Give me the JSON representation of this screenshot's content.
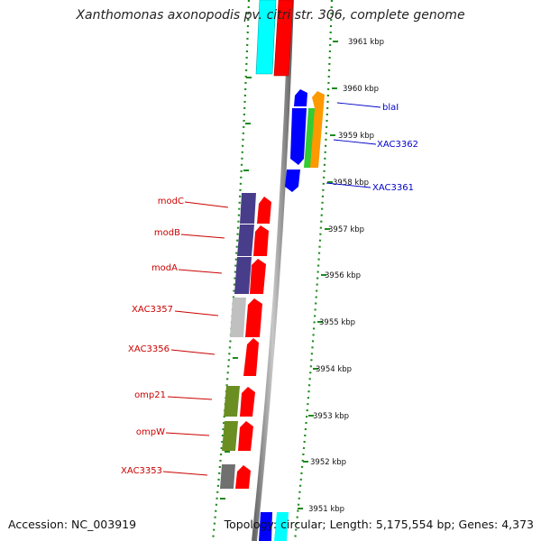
{
  "title": "Xanthomonas axonopodis pv. citri str. 306, complete genome",
  "footer": {
    "accession": "Accession: NC_003919",
    "summary": "Topology: circular; Length: 5,175,554 bp; Genes: 4,373"
  },
  "colors": {
    "backbone": "#8c8c8c",
    "ruler": "#1e8a1e",
    "label_forward": "#cc0000",
    "label_reverse": "#0000cc",
    "red": "#ff0000",
    "blue": "#0000ff",
    "cyan": "#00ffff",
    "green": "#33cc33",
    "orange": "#ff9900",
    "purple": "#483d8b",
    "silver": "#c0c0c0",
    "olive": "#6b8e23",
    "gray": "#707070"
  },
  "ticks": [
    {
      "label": "3961 kbp"
    },
    {
      "label": "3960 kbp"
    },
    {
      "label": "3959 kbp"
    },
    {
      "label": "3958 kbp"
    },
    {
      "label": "3957 kbp"
    },
    {
      "label": "3956 kbp"
    },
    {
      "label": "3955 kbp"
    },
    {
      "label": "3954 kbp"
    },
    {
      "label": "3953 kbp"
    },
    {
      "label": "3952 kbp"
    },
    {
      "label": "3951 kbp"
    }
  ],
  "gene_labels_left": [
    {
      "label": "modC"
    },
    {
      "label": "modB"
    },
    {
      "label": "modA"
    },
    {
      "label": "XAC3357"
    },
    {
      "label": "XAC3356"
    },
    {
      "label": "omp21"
    },
    {
      "label": "ompW"
    },
    {
      "label": "XAC3353"
    }
  ],
  "gene_labels_right": [
    {
      "label": "blaI"
    },
    {
      "label": "XAC3362"
    },
    {
      "label": "XAC3361"
    }
  ]
}
